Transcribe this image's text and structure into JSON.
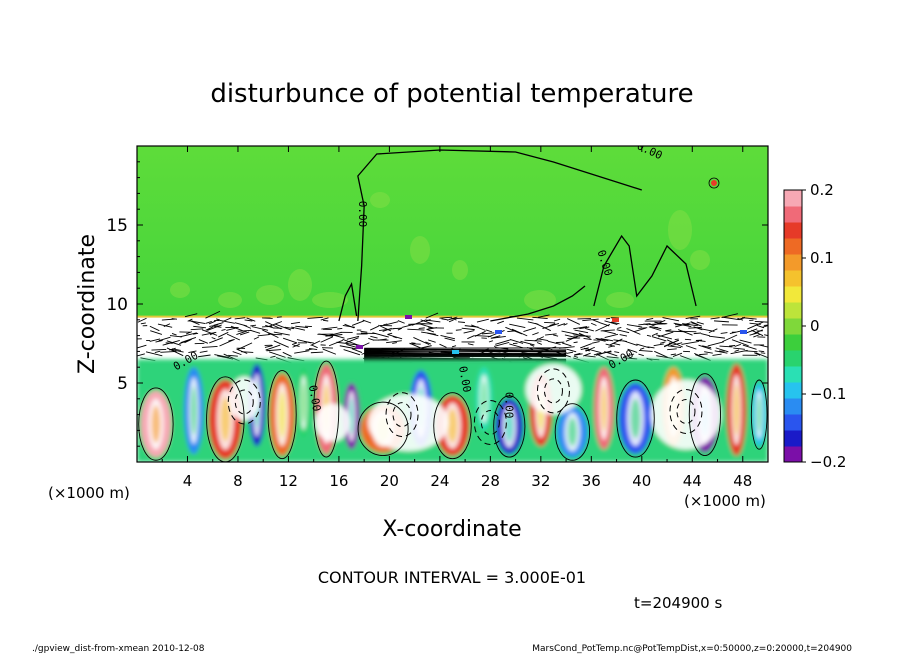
{
  "chart_data": {
    "type": "heatmap",
    "title": "disturbunce of potential temperature",
    "xlabel": "X-coordinate",
    "ylabel": "Z-coordinate",
    "x_unit_left": "(×1000 m)",
    "x_unit_right": "(×1000 m)",
    "x_ticks": [
      4,
      8,
      12,
      16,
      20,
      24,
      28,
      32,
      36,
      40,
      44,
      48
    ],
    "y_ticks": [
      5,
      10,
      15
    ],
    "xlim": [
      0,
      50
    ],
    "ylim": [
      0,
      20
    ],
    "colorbar": {
      "ticks": [
        "0.2",
        "0.1",
        "0",
        "−0.1",
        "−0.2"
      ],
      "values": [
        0.2,
        0.1,
        0,
        -0.1,
        -0.2
      ],
      "range": [
        -0.2,
        0.2
      ],
      "colors": [
        "#7b0fa8",
        "#1a1ac8",
        "#2a55ee",
        "#2a8cf2",
        "#27c3ee",
        "#2ae0b4",
        "#29d36e",
        "#3ccf3c",
        "#7fd83a",
        "#bde43a",
        "#f2e83a",
        "#f5c22d",
        "#f39a2a",
        "#ee6a24",
        "#e63a28",
        "#f06a78",
        "#f7a8b4"
      ]
    },
    "layers": {
      "upper_uniform": {
        "z": [
          9.2,
          20
        ],
        "value": 0
      },
      "noisy_band": {
        "z": [
          6.5,
          9.2
        ]
      },
      "convective_cells": {
        "z": [
          0,
          6.5
        ],
        "value_range": [
          -0.2,
          0.2
        ]
      }
    },
    "contour_label": "0.00",
    "contour_interval_text": "CONTOUR INTERVAL = 3.000E-01",
    "time_text": "t=204900 s"
  },
  "footer": {
    "left": "./gpview_dist-from-xmean  2010-12-08",
    "right": "MarsCond_PotTemp.nc@PotTempDist,x=0:50000,z=0:20000,t=204900"
  }
}
